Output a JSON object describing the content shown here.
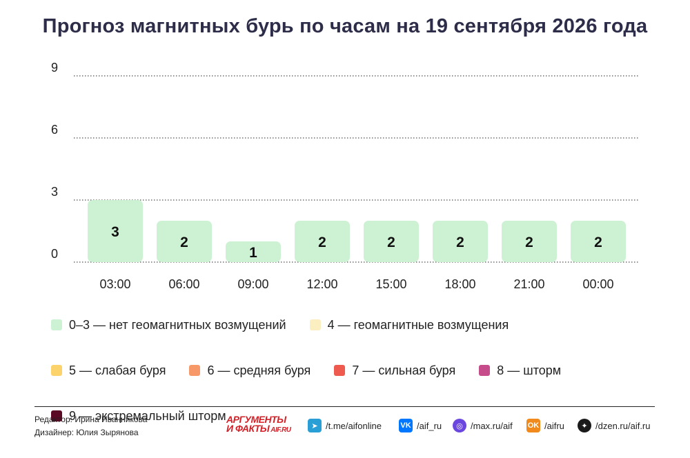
{
  "chart_data": {
    "type": "bar",
    "title": "Прогноз магнитных бурь по часам на 19 сентября 2026 года",
    "categories": [
      "03:00",
      "06:00",
      "09:00",
      "12:00",
      "15:00",
      "18:00",
      "21:00",
      "00:00"
    ],
    "values": [
      3,
      2,
      1,
      2,
      2,
      2,
      2,
      2
    ],
    "ylim": [
      0,
      9
    ],
    "yticks": [
      "0",
      "3",
      "6",
      "9"
    ],
    "grid": "dotted horizontal",
    "bar_color": "#cdf2d3",
    "xlabel": "",
    "ylabel": ""
  },
  "legend": [
    {
      "label": "0–3 — нет геомагнитных возмущений",
      "color": "#cdf2d3"
    },
    {
      "label": "4 — геомагнитные возмущения",
      "color": "#fbefc2"
    },
    {
      "label": "5 — слабая буря",
      "color": "#fbd36a"
    },
    {
      "label": "6 — средняя буря",
      "color": "#f79868"
    },
    {
      "label": "7 — сильная буря",
      "color": "#ef5a4e"
    },
    {
      "label": "8 — шторм",
      "color": "#c64b8a"
    },
    {
      "label": "9 — экстремальный шторм",
      "color": "#5a0a24"
    }
  ],
  "footer": {
    "editor": "Редактор: Ирина Иванникова",
    "designer": "Дизайнер: Юлия Зырянова",
    "logo_line1": "АРГУМЕНТЫ",
    "logo_line2": "И ФАКТЫ",
    "logo_site": "AIF.RU",
    "social": [
      {
        "icon": "telegram-icon",
        "text": "/t.me/aifonline",
        "color": "#2a9fd6",
        "glyph": "➤"
      },
      {
        "icon": "vk-icon",
        "text": "/aif_ru",
        "color": "#0077ff",
        "glyph": "VK"
      },
      {
        "icon": "max-icon",
        "text": "/max.ru/aif",
        "color": "#6b47e0",
        "glyph": "◎"
      },
      {
        "icon": "odnoklassniki-icon",
        "text": "/aifru",
        "color": "#f08a1c",
        "glyph": "OK"
      },
      {
        "icon": "dzen-icon",
        "text": "/dzen.ru/aif.ru",
        "color": "#1a1a1a",
        "glyph": "✦"
      }
    ]
  }
}
